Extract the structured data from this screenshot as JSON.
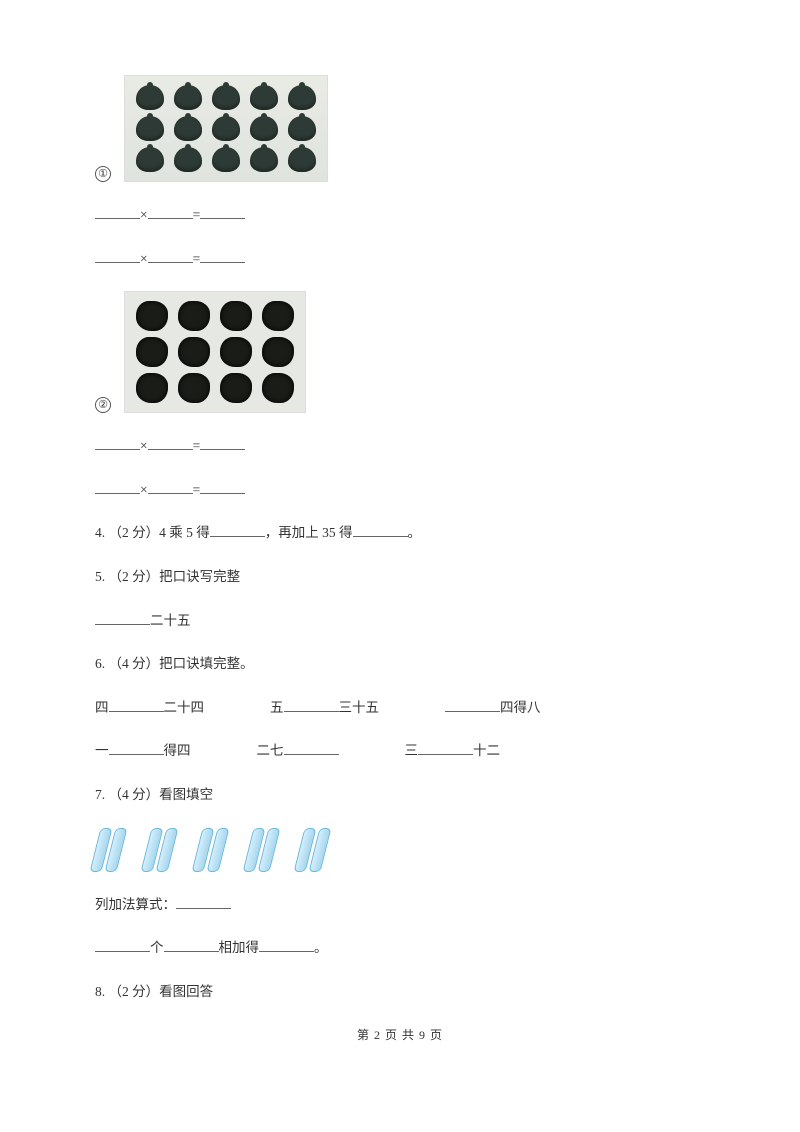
{
  "circ1": "①",
  "circ2": "②",
  "mult_sign": "×",
  "eq_sign": "=",
  "q4": "4. （2 分）4 乘 5 得",
  "q4_mid": "，再加上 35 得",
  "q4_end": "。",
  "q5": "5. （2 分）把口诀写完整",
  "q5_tail": "二十五",
  "q6": "6. （4 分）把口诀填完整。",
  "q6_r1_a_pre": "四",
  "q6_r1_a_post": "二十四",
  "q6_r1_b_pre": "五",
  "q6_r1_b_post": "三十五",
  "q6_r1_c_post": "四得八",
  "q6_r2_a_pre": "一",
  "q6_r2_a_post": "得四",
  "q6_r2_b_pre": "二七",
  "q6_r2_c_pre": "三",
  "q6_r2_c_post": "十二",
  "q7": "7. （4 分）看图填空",
  "q7_line1": "列加法算式：",
  "q7_mid_a": "个",
  "q7_mid_b": "相加得",
  "q7_end": "。",
  "q8": "8. （2 分）看图回答",
  "footer": "第 2 页 共 9 页",
  "img1": {
    "rows": 3,
    "cols": 5
  },
  "img2": {
    "rows": 3,
    "cols": 4
  },
  "sticks": {
    "groups": 5,
    "per_group": 2
  },
  "colors": {
    "text": "#333333",
    "img_bg1": "#e9ebe5",
    "img_bg2": "#e6e9e3",
    "leaf_fill": "#2e3a35",
    "clump_fill": "#1a1c18",
    "stick_light": "#d5eefb",
    "stick_dark": "#a6d7ee",
    "stick_border": "#6bb9db"
  }
}
